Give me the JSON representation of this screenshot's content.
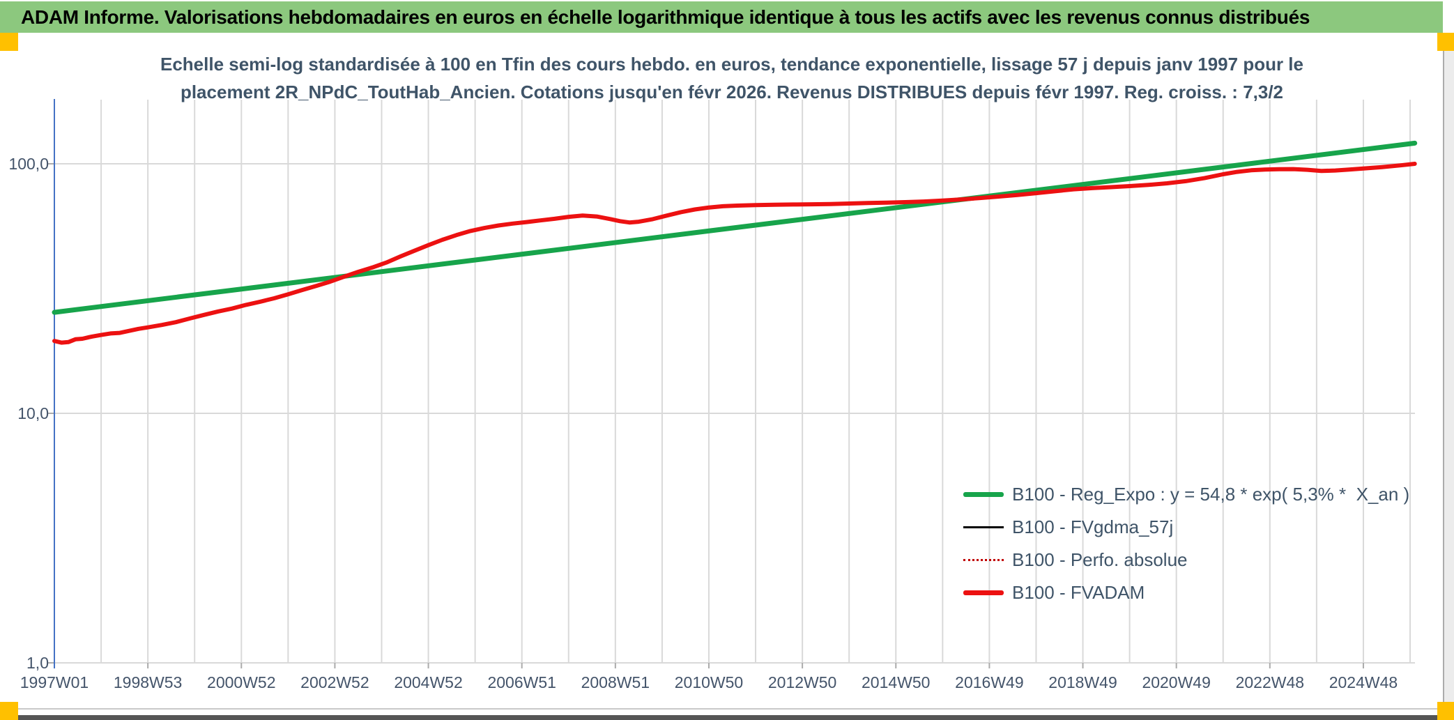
{
  "header": {
    "title": "ADAM Informe. Valorisations hebdomadaires en euros en échelle logarithmique identique à tous les actifs avec les revenus connus distribués"
  },
  "chart": {
    "title_line1": "Echelle semi-log standardisée à 100 en Tfin des cours hebdo. en euros, tendance exponentielle, lissage 57 j depuis janv 1997 pour le",
    "title_line2": "placement 2R_NPdC_ToutHab_Ancien. Cotations jusqu'en févr 2026. Revenus DISTRIBUES depuis févr 1997. Reg. croiss. : 7,3/2"
  },
  "colors": {
    "header_green": "#8CC87E",
    "corner_yellow": "#FFC000",
    "title_text": "#3F5468",
    "axis_text": "#44546A",
    "gridline": "#D9D9D9",
    "y_axis_line": "#4472C4",
    "series_green": "#17A44B",
    "series_black": "#000000",
    "series_dark_red": "#C00000",
    "series_red": "#EC1111"
  },
  "chart_data": {
    "type": "line",
    "title": "Echelle semi-log standardisée à 100 en Tfin des cours hebdo. en euros, tendance exponentielle, lissage 57 j depuis janv 1997 pour le placement 2R_NPdC_ToutHab_Ancien. Cotations jusqu'en févr 2026. Revenus DISTRIBUES depuis févr 1997. Reg. croiss. : 7,3/2",
    "legend_position": "inside-right-lower",
    "grid": true,
    "y_axis": {
      "scale": "log",
      "tick_labels": [
        "100,0",
        "10,0",
        "1,0"
      ],
      "tick_values": [
        100,
        10,
        1
      ],
      "ylim": [
        1,
        185
      ]
    },
    "x_axis": {
      "tick_labels": [
        "1997W01",
        "1998W53",
        "2000W52",
        "2002W52",
        "2004W52",
        "2006W51",
        "2008W51",
        "2010W50",
        "2012W50",
        "2014W50",
        "2016W49",
        "2018W49",
        "2020W49",
        "2022W48",
        "2024W48"
      ],
      "range_years": [
        1997.0,
        2026.2
      ]
    },
    "series": [
      {
        "name": "B100 - Reg_Expo : y = 54,8 * exp( 5,3% *  X_an )",
        "color": "#17A44B",
        "width": 7,
        "dash": null,
        "points": [
          [
            1997.0,
            25.4
          ],
          [
            2026.1,
            121.0
          ]
        ]
      },
      {
        "name": "B100 - FVgdma_57j",
        "color": "#000000",
        "width": 2.5,
        "dash": null,
        "points_ref": 3
      },
      {
        "name": "B100 - Perfo. absolue",
        "color": "#C00000",
        "width": 2.5,
        "dash": "2,4",
        "points_ref": 3
      },
      {
        "name": "B100 - FVADAM",
        "color": "#EC1111",
        "width": 6,
        "dash": null,
        "points": [
          [
            1997.0,
            19.5
          ],
          [
            1997.15,
            19.2
          ],
          [
            1997.3,
            19.3
          ],
          [
            1997.45,
            19.8
          ],
          [
            1997.6,
            19.9
          ],
          [
            1997.8,
            20.3
          ],
          [
            1998.0,
            20.6
          ],
          [
            1998.2,
            20.9
          ],
          [
            1998.4,
            21.0
          ],
          [
            1998.6,
            21.4
          ],
          [
            1998.8,
            21.8
          ],
          [
            1999.0,
            22.1
          ],
          [
            1999.3,
            22.6
          ],
          [
            1999.6,
            23.2
          ],
          [
            1999.9,
            24.0
          ],
          [
            2000.2,
            24.8
          ],
          [
            2000.5,
            25.6
          ],
          [
            2000.8,
            26.3
          ],
          [
            2001.1,
            27.2
          ],
          [
            2001.4,
            28.0
          ],
          [
            2001.7,
            28.9
          ],
          [
            2002.0,
            30.0
          ],
          [
            2002.3,
            31.2
          ],
          [
            2002.6,
            32.4
          ],
          [
            2002.9,
            33.7
          ],
          [
            2003.2,
            35.3
          ],
          [
            2003.5,
            36.9
          ],
          [
            2003.8,
            38.4
          ],
          [
            2004.1,
            40.2
          ],
          [
            2004.4,
            42.5
          ],
          [
            2004.7,
            44.8
          ],
          [
            2005.0,
            47.2
          ],
          [
            2005.3,
            49.6
          ],
          [
            2005.6,
            51.8
          ],
          [
            2005.9,
            53.8
          ],
          [
            2006.2,
            55.3
          ],
          [
            2006.5,
            56.6
          ],
          [
            2006.8,
            57.6
          ],
          [
            2007.1,
            58.4
          ],
          [
            2007.4,
            59.3
          ],
          [
            2007.7,
            60.2
          ],
          [
            2008.0,
            61.3
          ],
          [
            2008.3,
            62.0
          ],
          [
            2008.6,
            61.5
          ],
          [
            2008.9,
            60.0
          ],
          [
            2009.1,
            58.9
          ],
          [
            2009.3,
            58.2
          ],
          [
            2009.5,
            58.6
          ],
          [
            2009.8,
            60.0
          ],
          [
            2010.1,
            62.0
          ],
          [
            2010.4,
            64.0
          ],
          [
            2010.7,
            65.6
          ],
          [
            2011.0,
            66.8
          ],
          [
            2011.3,
            67.6
          ],
          [
            2011.6,
            68.0
          ],
          [
            2012.0,
            68.3
          ],
          [
            2012.4,
            68.5
          ],
          [
            2012.8,
            68.7
          ],
          [
            2013.2,
            68.8
          ],
          [
            2013.6,
            69.0
          ],
          [
            2014.0,
            69.3
          ],
          [
            2014.4,
            69.6
          ],
          [
            2014.8,
            69.9
          ],
          [
            2015.2,
            70.2
          ],
          [
            2015.6,
            70.6
          ],
          [
            2016.0,
            71.2
          ],
          [
            2016.4,
            72.0
          ],
          [
            2016.8,
            72.9
          ],
          [
            2017.2,
            73.9
          ],
          [
            2017.6,
            75.0
          ],
          [
            2018.0,
            76.3
          ],
          [
            2018.4,
            77.6
          ],
          [
            2018.8,
            79.0
          ],
          [
            2019.2,
            79.9
          ],
          [
            2019.6,
            80.6
          ],
          [
            2020.0,
            81.4
          ],
          [
            2020.4,
            82.3
          ],
          [
            2020.8,
            83.5
          ],
          [
            2021.2,
            85.2
          ],
          [
            2021.6,
            87.6
          ],
          [
            2022.0,
            90.8
          ],
          [
            2022.3,
            92.8
          ],
          [
            2022.6,
            94.2
          ],
          [
            2022.9,
            94.8
          ],
          [
            2023.2,
            95.1
          ],
          [
            2023.5,
            95.2
          ],
          [
            2023.8,
            94.6
          ],
          [
            2024.1,
            93.6
          ],
          [
            2024.4,
            94.0
          ],
          [
            2024.7,
            94.8
          ],
          [
            2025.0,
            95.8
          ],
          [
            2025.4,
            97.0
          ],
          [
            2025.8,
            98.6
          ],
          [
            2026.1,
            100.0
          ]
        ]
      }
    ]
  }
}
